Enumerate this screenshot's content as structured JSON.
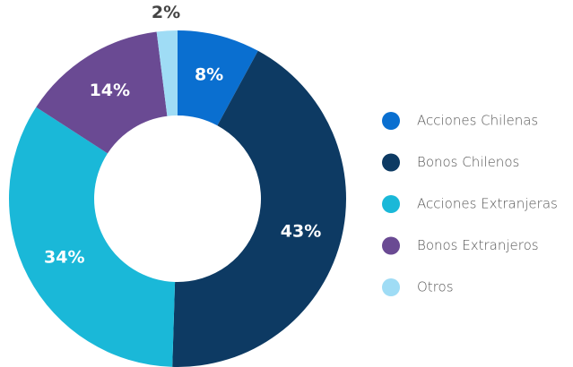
{
  "chart_data": {
    "type": "donut",
    "categories": [
      "Acciones Chilenas",
      "Bonos Chilenos",
      "Acciones Extranjeras",
      "Bonos Extranjeros",
      "Otros"
    ],
    "values": [
      8,
      43,
      34,
      14,
      2
    ],
    "value_labels": [
      "8%",
      "43%",
      "34%",
      "14%",
      "2%"
    ],
    "colors": [
      "#0a6fd0",
      "#0d3a63",
      "#1ab8d8",
      "#6a4a93",
      "#9fdcf5"
    ],
    "legend": "right"
  }
}
